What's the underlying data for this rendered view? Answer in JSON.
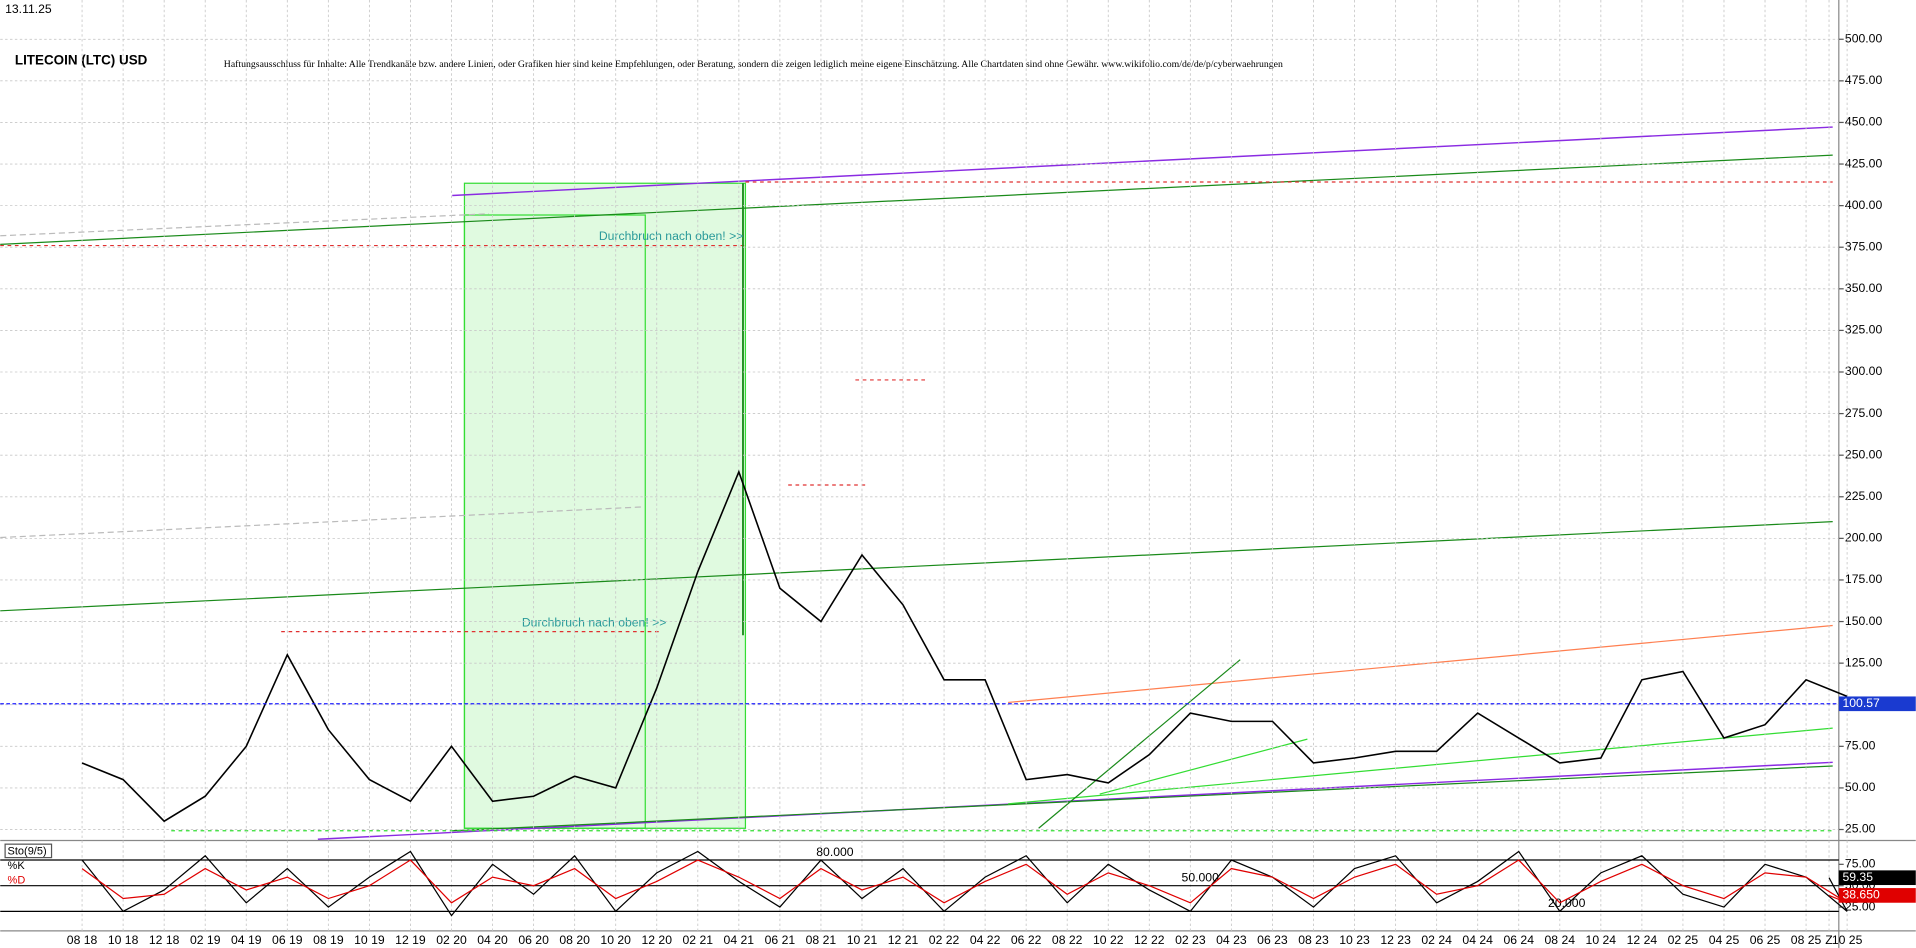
{
  "chart_data": {
    "type": "line",
    "title": "LITECOIN (LTC) USD",
    "date": "13.11.25",
    "disclaimer": "Haftungsausschluss für Inhalte: Alle Trendkanäle bzw. andere Linien, oder Grafiken hier sind keine Empfehlungen, oder Beratung, sondern die zeigen lediglich meine eigene Einschätzung. Alle Chartdaten sind ohne Gewähr.  www.wikifolio.com/de/de/p/cyberwaehrungen",
    "annotations": [
      "Durchbruch nach oben! >>",
      "Durchbruch nach oben! >>"
    ],
    "categories": [
      "08 18",
      "10 18",
      "12 18",
      "02 19",
      "04 19",
      "06 19",
      "08 19",
      "10 19",
      "12 19",
      "02 20",
      "04 20",
      "06 20",
      "08 20",
      "10 20",
      "12 20",
      "02 21",
      "04 21",
      "06 21",
      "08 21",
      "10 21",
      "12 21",
      "02 22",
      "04 22",
      "06 22",
      "08 22",
      "10 22",
      "12 22",
      "02 23",
      "04 23",
      "06 23",
      "08 23",
      "10 23",
      "12 23",
      "02 24",
      "04 24",
      "06 24",
      "08 24",
      "10 24",
      "12 24",
      "02 25",
      "04 25",
      "06 25",
      "08 25",
      "10 25",
      "Z"
    ],
    "series": [
      {
        "name": "LTC",
        "color": "#000000",
        "values": [
          65,
          55,
          30,
          45,
          75,
          130,
          85,
          55,
          42,
          75,
          42,
          45,
          57,
          50,
          110,
          180,
          240,
          170,
          150,
          190,
          160,
          115,
          115,
          55,
          58,
          53,
          70,
          95,
          90,
          90,
          65,
          68,
          72,
          72,
          95,
          80,
          65,
          68,
          115,
          120,
          80,
          88,
          115,
          105,
          null
        ]
      }
    ],
    "last_price": 100.57,
    "ylim": [
      18.4,
      523.6
    ],
    "yticks": [
      {
        "value": 25,
        "label": "25.00"
      },
      {
        "value": 50,
        "label": "50.00"
      },
      {
        "value": 75,
        "label": "75.00"
      },
      {
        "value": 100,
        "label": "100.00"
      },
      {
        "value": 125,
        "label": "125.00"
      },
      {
        "value": 150,
        "label": "150.00"
      },
      {
        "value": 175,
        "label": "175.00"
      },
      {
        "value": 200,
        "label": "200.00"
      },
      {
        "value": 225,
        "label": "225.00"
      },
      {
        "value": 250,
        "label": "250.00"
      },
      {
        "value": 275,
        "label": "275.00"
      },
      {
        "value": 300,
        "label": "300.00"
      },
      {
        "value": 325,
        "label": "325.00"
      },
      {
        "value": 350,
        "label": "350.00"
      },
      {
        "value": 375,
        "label": "375.00"
      },
      {
        "value": 400,
        "label": "400.00"
      },
      {
        "value": 425,
        "label": "425.00"
      },
      {
        "value": 450,
        "label": "450.00"
      },
      {
        "value": 475,
        "label": "475.00"
      },
      {
        "value": 500,
        "label": "500.00"
      }
    ],
    "grid": true,
    "indicator": {
      "title": "Sto(9/5)",
      "ylim": [
        0,
        100
      ],
      "yticks": [
        {
          "value": 25,
          "label": "25.00"
        },
        {
          "value": 50,
          "label": "50.00"
        },
        {
          "value": 75,
          "label": "75.00"
        }
      ],
      "levels": [
        {
          "value": 80,
          "label": "80.000"
        },
        {
          "value": 50,
          "label": "50.000"
        },
        {
          "value": 20,
          "label": "20.000"
        }
      ],
      "series": [
        {
          "name": "%K",
          "color": "#000000",
          "last_value": 59.35,
          "values": [
            80,
            20,
            45,
            85,
            30,
            70,
            25,
            60,
            90,
            15,
            75,
            40,
            85,
            20,
            65,
            90,
            55,
            25,
            80,
            35,
            70,
            20,
            60,
            85,
            30,
            75,
            45,
            20,
            80,
            60,
            25,
            70,
            85,
            30,
            55,
            90,
            20,
            65,
            85,
            40,
            25,
            75,
            60,
            20,
            59.35
          ]
        },
        {
          "name": "%D",
          "color": "#e00000",
          "last_value": {
            "value": 38.65,
            "label": "38.650"
          },
          "values": [
            70,
            35,
            40,
            70,
            45,
            60,
            35,
            50,
            80,
            30,
            60,
            50,
            70,
            35,
            55,
            80,
            60,
            35,
            70,
            45,
            60,
            30,
            55,
            75,
            40,
            65,
            50,
            30,
            70,
            60,
            35,
            60,
            75,
            40,
            50,
            80,
            30,
            55,
            75,
            50,
            35,
            65,
            60,
            30,
            38.65
          ]
        }
      ]
    }
  }
}
